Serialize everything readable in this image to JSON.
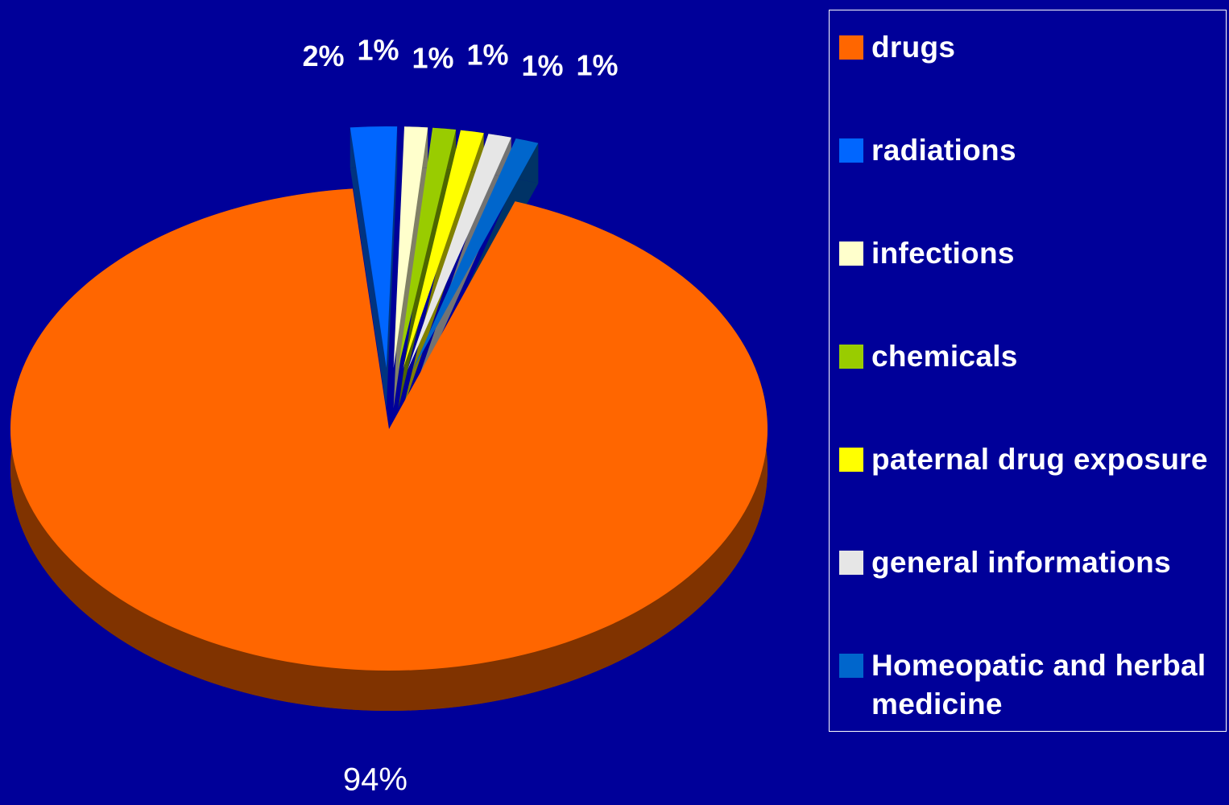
{
  "chart_data": {
    "type": "pie",
    "categories": [
      "drugs",
      "radiations",
      "infections",
      "chemicals",
      "paternal drug exposure",
      "general informations",
      "Homeopatic and herbal medicine"
    ],
    "values": [
      94,
      2,
      1,
      1,
      1,
      1,
      1
    ],
    "value_labels": [
      "94%",
      "2%",
      "1%",
      "1%",
      "1%",
      "1%",
      "1%"
    ],
    "colors": [
      "#ff6600",
      "#0066ff",
      "#ffffcc",
      "#99cc00",
      "#ffff00",
      "#e6e6e6",
      "#0066cc"
    ],
    "legend": "right"
  }
}
